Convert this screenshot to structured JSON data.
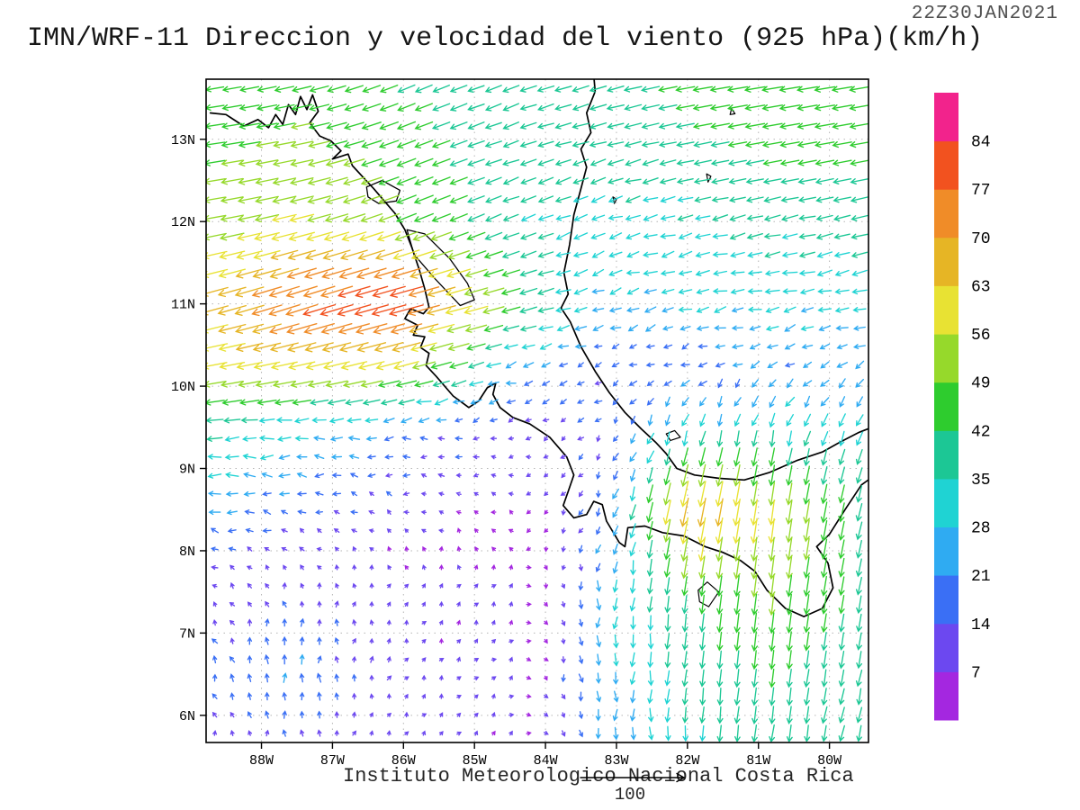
{
  "header": {
    "title": "IMN/WRF-11 Direccion y velocidad del viento (925 hPa)(km/h)",
    "timestamp": "22Z30JAN2021"
  },
  "footer": {
    "credit": "Instituto Meteorologico Nacional Costa Rica"
  },
  "chart_data": {
    "type": "vector_field",
    "title": "IMN/WRF-11 Direccion y velocidad del viento (925 hPa)(km/h)",
    "model": "IMN/WRF-11",
    "variable": "Direccion y velocidad del viento",
    "level": "925 hPa",
    "units": "km/h",
    "valid_time": "22Z30JAN2021",
    "legend_position": "right",
    "x_axis": {
      "range": [
        -88.78,
        -79.45
      ],
      "ticks": [
        {
          "value": -88,
          "label": "88W"
        },
        {
          "value": -87,
          "label": "87W"
        },
        {
          "value": -86,
          "label": "86W"
        },
        {
          "value": -85,
          "label": "85W"
        },
        {
          "value": -84,
          "label": "84W"
        },
        {
          "value": -83,
          "label": "83W"
        },
        {
          "value": -82,
          "label": "82W"
        },
        {
          "value": -81,
          "label": "81W"
        },
        {
          "value": -80,
          "label": "80W"
        }
      ]
    },
    "y_axis": {
      "range": [
        5.67,
        13.73
      ],
      "ticks": [
        {
          "value": 6,
          "label": "6N"
        },
        {
          "value": 7,
          "label": "7N"
        },
        {
          "value": 8,
          "label": "8N"
        },
        {
          "value": 9,
          "label": "9N"
        },
        {
          "value": 10,
          "label": "10N"
        },
        {
          "value": 11,
          "label": "11N"
        },
        {
          "value": 12,
          "label": "12N"
        },
        {
          "value": 13,
          "label": "13N"
        }
      ]
    },
    "colorbar": {
      "levels": [
        7,
        14,
        21,
        28,
        35,
        42,
        49,
        56,
        63,
        70,
        77,
        84
      ],
      "colors": [
        "#a427e0",
        "#6c48f0",
        "#3a6ff5",
        "#2fabf2",
        "#1fd3d3",
        "#1cc795",
        "#2ecc2e",
        "#96d92b",
        "#e8e233",
        "#e6b525",
        "#f08c28",
        "#f2521f",
        "#f2238c"
      ],
      "position": "right",
      "units": "km/h"
    },
    "reference_vector": {
      "speed": 100,
      "label": "100"
    },
    "wind_grid": {
      "units": "km/h",
      "note": "coarse u(east),v(north) control grid read from the plotted arrows; rows = lats, cols = lons",
      "lons": [
        -89,
        -87.5,
        -86,
        -84.5,
        -83.2,
        -82,
        -80.8,
        -79.3
      ],
      "lats": [
        13.8,
        13,
        12,
        11,
        10.3,
        9.5,
        8.5,
        7.5,
        6.5,
        5.55
      ],
      "u": [
        [
          -40,
          -42,
          -38,
          -36,
          -38,
          -44,
          -48,
          -46
        ],
        [
          -45,
          -50,
          -42,
          -36,
          -36,
          -40,
          -44,
          -44
        ],
        [
          -50,
          -56,
          -46,
          -34,
          -30,
          -33,
          -36,
          -38
        ],
        [
          -60,
          -74,
          -82,
          -44,
          -26,
          -27,
          -29,
          -30
        ],
        [
          -56,
          -62,
          -60,
          -26,
          -14,
          -17,
          -20,
          -23
        ],
        [
          -38,
          -30,
          -20,
          -11,
          -9,
          -10,
          -8,
          -12
        ],
        [
          -26,
          -16,
          -9,
          -6,
          -6,
          -14,
          -8,
          -10
        ],
        [
          -8,
          -2,
          3,
          5,
          -2,
          -6,
          -6,
          -8
        ],
        [
          -6,
          1,
          4,
          6,
          0,
          -3,
          -5,
          -7
        ],
        [
          -4,
          2,
          5,
          7,
          2,
          -2,
          -6,
          -8
        ]
      ],
      "v": [
        [
          -6,
          -10,
          -16,
          -14,
          -10,
          -8,
          -8,
          -8
        ],
        [
          -6,
          -10,
          -16,
          -12,
          -10,
          -8,
          -8,
          -8
        ],
        [
          -8,
          -14,
          -18,
          -14,
          -10,
          -8,
          -8,
          -8
        ],
        [
          -16,
          -24,
          -22,
          -12,
          -8,
          -7,
          -7,
          -7
        ],
        [
          -10,
          -14,
          -16,
          -8,
          -6,
          -8,
          -10,
          -10
        ],
        [
          -4,
          -2,
          -2,
          -4,
          -12,
          -28,
          -32,
          -30
        ],
        [
          2,
          3,
          4,
          3,
          -16,
          -68,
          -58,
          -36
        ],
        [
          8,
          12,
          8,
          6,
          -24,
          -42,
          -50,
          -38
        ],
        [
          12,
          22,
          8,
          5,
          -26,
          -38,
          -42,
          -36
        ],
        [
          10,
          12,
          7,
          5,
          -22,
          -34,
          -38,
          -34
        ]
      ]
    }
  },
  "map": {
    "outline_color": "#000000",
    "gridline_lats": [
      6,
      7,
      8,
      9,
      10,
      11,
      12,
      13
    ],
    "gridline_lons": [
      -88,
      -87,
      -86,
      -85,
      -84,
      -83,
      -82,
      -81,
      -80
    ],
    "coastlines": [
      [
        [
          -88.72,
          13.32
        ],
        [
          -88.5,
          13.3
        ],
        [
          -88.25,
          13.16
        ],
        [
          -88.05,
          13.24
        ],
        [
          -87.9,
          13.14
        ],
        [
          -87.8,
          13.3
        ],
        [
          -87.7,
          13.18
        ],
        [
          -87.62,
          13.42
        ],
        [
          -87.52,
          13.3
        ],
        [
          -87.45,
          13.52
        ],
        [
          -87.36,
          13.36
        ],
        [
          -87.28,
          13.54
        ],
        [
          -87.2,
          13.34
        ],
        [
          -87.32,
          13.2
        ],
        [
          -87.18,
          13.04
        ],
        [
          -87.02,
          12.98
        ],
        [
          -86.88,
          12.86
        ],
        [
          -87.0,
          12.76
        ],
        [
          -86.78,
          12.82
        ],
        [
          -86.72,
          12.68
        ],
        [
          -86.58,
          12.55
        ],
        [
          -86.42,
          12.4
        ],
        [
          -86.3,
          12.28
        ],
        [
          -86.12,
          12.1
        ],
        [
          -85.98,
          11.9
        ],
        [
          -85.88,
          11.68
        ],
        [
          -85.78,
          11.42
        ],
        [
          -85.7,
          11.18
        ],
        [
          -85.64,
          10.96
        ],
        [
          -85.72,
          10.88
        ],
        [
          -85.9,
          10.94
        ],
        [
          -85.98,
          10.82
        ],
        [
          -85.8,
          10.74
        ],
        [
          -85.86,
          10.62
        ],
        [
          -85.7,
          10.6
        ],
        [
          -85.76,
          10.47
        ],
        [
          -85.64,
          10.4
        ],
        [
          -85.68,
          10.25
        ],
        [
          -85.54,
          10.12
        ],
        [
          -85.3,
          9.88
        ],
        [
          -85.08,
          9.74
        ],
        [
          -84.94,
          9.82
        ],
        [
          -84.82,
          9.98
        ],
        [
          -84.7,
          10.04
        ],
        [
          -84.74,
          9.9
        ],
        [
          -84.64,
          9.74
        ],
        [
          -84.46,
          9.62
        ],
        [
          -84.22,
          9.54
        ],
        [
          -83.94,
          9.38
        ],
        [
          -83.7,
          9.14
        ],
        [
          -83.6,
          8.92
        ],
        [
          -83.68,
          8.72
        ],
        [
          -83.75,
          8.55
        ],
        [
          -83.6,
          8.4
        ],
        [
          -83.42,
          8.44
        ],
        [
          -83.32,
          8.6
        ],
        [
          -83.2,
          8.56
        ],
        [
          -83.14,
          8.36
        ],
        [
          -82.96,
          8.1
        ],
        [
          -82.88,
          8.05
        ],
        [
          -82.84,
          8.28
        ],
        [
          -82.6,
          8.3
        ],
        [
          -82.35,
          8.22
        ],
        [
          -82.05,
          8.18
        ],
        [
          -81.75,
          8.05
        ],
        [
          -81.5,
          7.98
        ],
        [
          -81.25,
          7.88
        ],
        [
          -81.05,
          7.75
        ],
        [
          -80.88,
          7.52
        ],
        [
          -80.62,
          7.3
        ],
        [
          -80.36,
          7.2
        ],
        [
          -80.1,
          7.3
        ],
        [
          -79.95,
          7.55
        ],
        [
          -80.02,
          7.85
        ],
        [
          -80.18,
          8.05
        ],
        [
          -80.0,
          8.2
        ],
        [
          -79.78,
          8.5
        ],
        [
          -79.55,
          8.8
        ],
        [
          -79.34,
          8.93
        ]
      ],
      [
        [
          -79.34,
          9.52
        ],
        [
          -79.58,
          9.44
        ],
        [
          -79.85,
          9.32
        ],
        [
          -80.1,
          9.2
        ],
        [
          -80.45,
          9.1
        ],
        [
          -80.85,
          8.95
        ],
        [
          -81.2,
          8.86
        ],
        [
          -81.55,
          8.88
        ],
        [
          -81.9,
          8.92
        ],
        [
          -82.15,
          9.0
        ],
        [
          -82.3,
          9.18
        ],
        [
          -82.45,
          9.32
        ],
        [
          -82.65,
          9.48
        ],
        [
          -82.88,
          9.68
        ],
        [
          -83.1,
          9.92
        ],
        [
          -83.3,
          10.18
        ],
        [
          -83.5,
          10.48
        ],
        [
          -83.65,
          10.78
        ],
        [
          -83.78,
          10.95
        ],
        [
          -83.68,
          11.12
        ],
        [
          -83.74,
          11.38
        ],
        [
          -83.66,
          11.72
        ],
        [
          -83.6,
          12.08
        ],
        [
          -83.5,
          12.4
        ],
        [
          -83.42,
          12.66
        ],
        [
          -83.5,
          12.88
        ],
        [
          -83.36,
          13.08
        ],
        [
          -83.42,
          13.32
        ],
        [
          -83.3,
          13.58
        ],
        [
          -83.32,
          13.78
        ]
      ]
    ],
    "lakes": [
      [
        [
          -85.95,
          11.9
        ],
        [
          -85.7,
          11.85
        ],
        [
          -85.35,
          11.55
        ],
        [
          -85.1,
          11.25
        ],
        [
          -85.0,
          11.05
        ],
        [
          -85.2,
          10.98
        ],
        [
          -85.55,
          11.3
        ],
        [
          -85.85,
          11.6
        ]
      ],
      [
        [
          -86.52,
          12.42
        ],
        [
          -86.3,
          12.5
        ],
        [
          -86.05,
          12.38
        ],
        [
          -86.1,
          12.25
        ],
        [
          -86.35,
          12.22
        ],
        [
          -86.5,
          12.3
        ]
      ]
    ],
    "islands": [
      [
        [
          -81.85,
          7.52
        ],
        [
          -81.72,
          7.62
        ],
        [
          -81.56,
          7.5
        ],
        [
          -81.7,
          7.32
        ],
        [
          -81.83,
          7.38
        ]
      ],
      [
        [
          -82.3,
          9.42
        ],
        [
          -82.18,
          9.46
        ],
        [
          -82.1,
          9.38
        ],
        [
          -82.24,
          9.34
        ]
      ],
      [
        [
          -81.73,
          12.58
        ],
        [
          -81.67,
          12.55
        ],
        [
          -81.71,
          12.48
        ]
      ],
      [
        [
          -81.38,
          13.37
        ],
        [
          -81.33,
          13.31
        ],
        [
          -81.4,
          13.3
        ]
      ],
      [
        [
          -83.05,
          12.3
        ],
        [
          -83.0,
          12.27
        ],
        [
          -83.03,
          12.22
        ]
      ]
    ]
  }
}
